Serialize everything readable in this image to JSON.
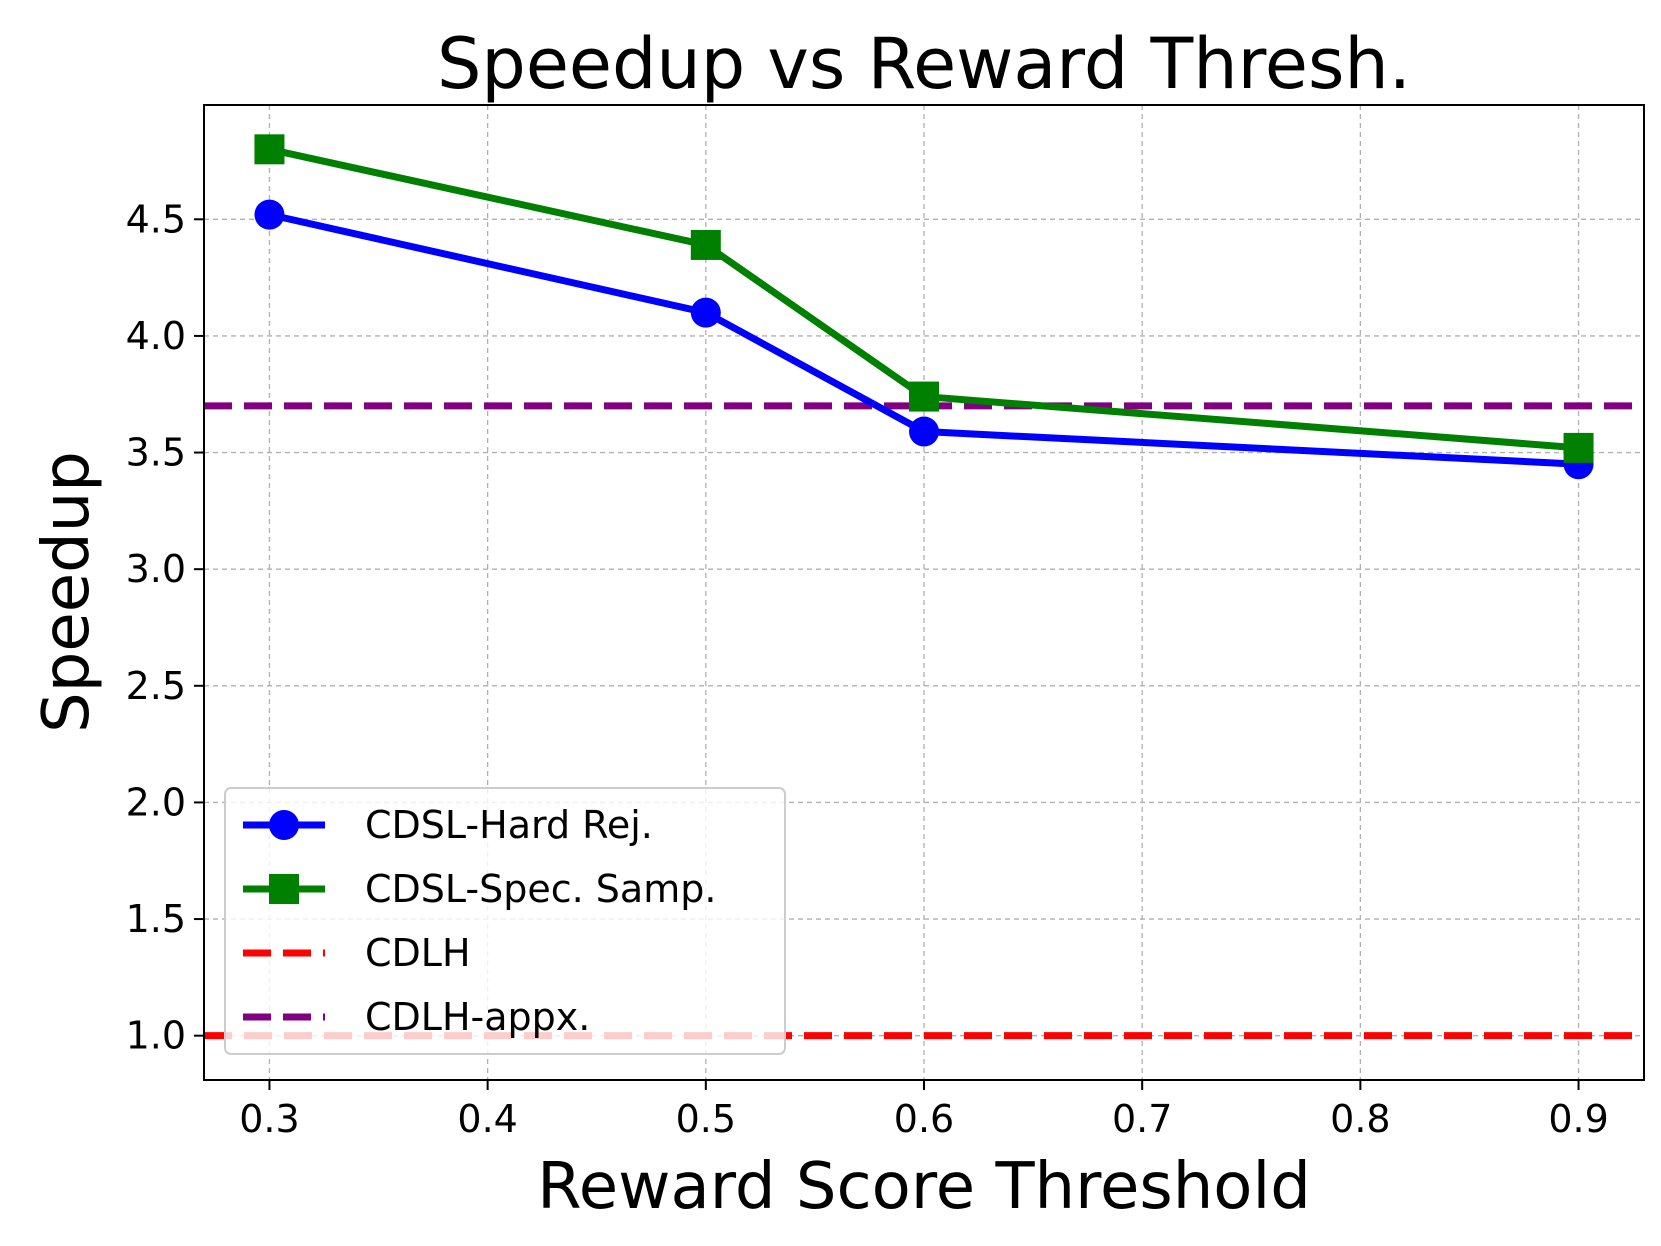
{
  "chart_data": {
    "type": "line",
    "title": "Speedup vs Reward Thresh.",
    "xlabel": "Reward Score Threshold",
    "ylabel": "Speedup",
    "xlim": [
      0.27,
      0.93
    ],
    "ylim": [
      0.81,
      4.99
    ],
    "xticks": [
      "0.3",
      "0.4",
      "0.5",
      "0.6",
      "0.7",
      "0.8",
      "0.9"
    ],
    "yticks": [
      "1.0",
      "1.5",
      "2.0",
      "2.5",
      "3.0",
      "3.5",
      "4.0",
      "4.5"
    ],
    "grid": true,
    "legend_position": "lower-left",
    "series": [
      {
        "name": "CDSL-Hard Rej.",
        "color": "#0000ff",
        "marker": "circle",
        "linestyle": "solid",
        "x": [
          0.3,
          0.5,
          0.6,
          0.9
        ],
        "y": [
          4.52,
          4.1,
          3.59,
          3.45
        ]
      },
      {
        "name": "CDSL-Spec. Samp.",
        "color": "#008000",
        "marker": "square",
        "linestyle": "solid",
        "x": [
          0.3,
          0.5,
          0.6,
          0.9
        ],
        "y": [
          4.8,
          4.39,
          3.74,
          3.52
        ]
      },
      {
        "name": "CDLH",
        "color": "#ff0000",
        "marker": "none",
        "linestyle": "dashed",
        "hline": 1.0
      },
      {
        "name": "CDLH-appx.",
        "color": "#800080",
        "marker": "none",
        "linestyle": "dashed",
        "hline": 3.7
      }
    ]
  }
}
